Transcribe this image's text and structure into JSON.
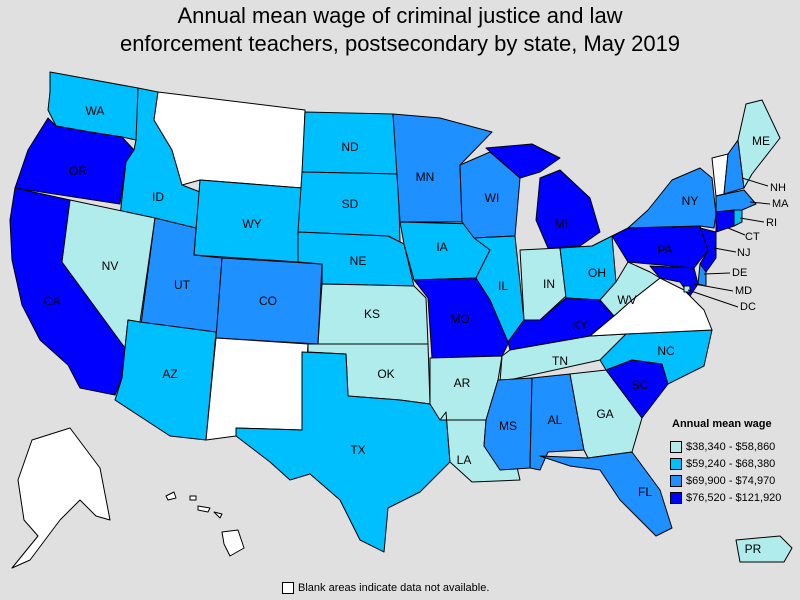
{
  "title_line1": "Annual mean wage of criminal justice and law",
  "title_line2": "enforcement teachers, postsecondary by state, May 2019",
  "legend": {
    "title": "Annual mean wage",
    "items": [
      {
        "label": "$38,340 - $58,860",
        "color": "#b0ecec"
      },
      {
        "label": "$59,240 - $68,380",
        "color": "#00bfff"
      },
      {
        "label": "$69,900 - $74,970",
        "color": "#1e90ff"
      },
      {
        "label": "$76,520 - $121,920",
        "color": "#0000ff"
      }
    ]
  },
  "footnote": "Blank areas indicate data not available.",
  "colors": {
    "na": "#ffffff",
    "c1": "#b0ecec",
    "c2": "#00bfff",
    "c3": "#1e90ff",
    "c4": "#0000ff"
  },
  "states": {
    "WA": {
      "label": "WA",
      "class": "c2"
    },
    "OR": {
      "label": "OR",
      "class": "c4"
    },
    "CA": {
      "label": "CA",
      "class": "c4"
    },
    "ID": {
      "label": "ID",
      "class": "c2"
    },
    "NV": {
      "label": "NV",
      "class": "c1"
    },
    "MT": {
      "label": "",
      "class": "na"
    },
    "WY": {
      "label": "WY",
      "class": "c2"
    },
    "UT": {
      "label": "UT",
      "class": "c3"
    },
    "AZ": {
      "label": "AZ",
      "class": "c2"
    },
    "CO": {
      "label": "CO",
      "class": "c3"
    },
    "NM": {
      "label": "",
      "class": "na"
    },
    "ND": {
      "label": "ND",
      "class": "c2"
    },
    "SD": {
      "label": "SD",
      "class": "c2"
    },
    "NE": {
      "label": "NE",
      "class": "c2"
    },
    "KS": {
      "label": "KS",
      "class": "c1"
    },
    "OK": {
      "label": "OK",
      "class": "c1"
    },
    "TX": {
      "label": "TX",
      "class": "c2"
    },
    "MN": {
      "label": "MN",
      "class": "c3"
    },
    "IA": {
      "label": "IA",
      "class": "c2"
    },
    "MO": {
      "label": "MO",
      "class": "c4"
    },
    "AR": {
      "label": "AR",
      "class": "c1"
    },
    "LA": {
      "label": "LA",
      "class": "c1"
    },
    "WI": {
      "label": "WI",
      "class": "c3"
    },
    "IL": {
      "label": "IL",
      "class": "c2"
    },
    "MI": {
      "label": "MI",
      "class": "c4"
    },
    "IN": {
      "label": "IN",
      "class": "c1"
    },
    "OH": {
      "label": "OH",
      "class": "c2"
    },
    "KY": {
      "label": "KY",
      "class": "c4"
    },
    "TN": {
      "label": "TN",
      "class": "c1"
    },
    "MS": {
      "label": "MS",
      "class": "c3"
    },
    "AL": {
      "label": "AL",
      "class": "c3"
    },
    "GA": {
      "label": "GA",
      "class": "c1"
    },
    "FL": {
      "label": "FL",
      "class": "c3"
    },
    "SC": {
      "label": "SC",
      "class": "c4"
    },
    "NC": {
      "label": "NC",
      "class": "c2"
    },
    "VA": {
      "label": "",
      "class": "na"
    },
    "WV": {
      "label": "WV",
      "class": "c1"
    },
    "PA": {
      "label": "PA",
      "class": "c4"
    },
    "NY": {
      "label": "NY",
      "class": "c3"
    },
    "ME": {
      "label": "ME",
      "class": "c1"
    },
    "NH": {
      "label": "NH",
      "class": "c3"
    },
    "VT": {
      "label": "",
      "class": "na"
    },
    "MA": {
      "label": "MA",
      "class": "c3"
    },
    "RI": {
      "label": "RI",
      "class": "c2"
    },
    "CT": {
      "label": "CT",
      "class": "c4"
    },
    "NJ": {
      "label": "NJ",
      "class": "c4"
    },
    "DE": {
      "label": "DE",
      "class": "c3"
    },
    "MD": {
      "label": "MD",
      "class": "c4"
    },
    "DC": {
      "label": "DC",
      "class": "c1"
    },
    "AK": {
      "label": "",
      "class": "na"
    },
    "HI": {
      "label": "",
      "class": "na"
    },
    "PR": {
      "label": "PR",
      "class": "c1"
    }
  }
}
